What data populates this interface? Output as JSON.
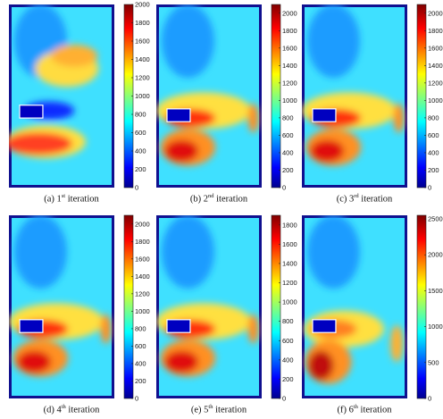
{
  "chart_data": [
    {
      "type": "heatmap",
      "caption": {
        "letter": "(a) 1",
        "sup": "st",
        "rest": " iteration"
      },
      "ylim": [
        0,
        2000
      ],
      "colorbar_ticks": [
        "0",
        "200",
        "400",
        "600",
        "800",
        "1000",
        "1200",
        "1400",
        "1600",
        "1800",
        "2000"
      ],
      "grid": false
    },
    {
      "type": "heatmap",
      "caption": {
        "letter": "(b) 2",
        "sup": "nd",
        "rest": " iteration"
      },
      "ylim": [
        0,
        2100
      ],
      "colorbar_ticks": [
        "0",
        "200",
        "400",
        "600",
        "800",
        "1000",
        "1200",
        "1400",
        "1600",
        "1800",
        "2000"
      ],
      "grid": false
    },
    {
      "type": "heatmap",
      "caption": {
        "letter": "(c) 3",
        "sup": "rd",
        "rest": " iteration"
      },
      "ylim": [
        0,
        2100
      ],
      "colorbar_ticks": [
        "0",
        "200",
        "400",
        "600",
        "800",
        "1000",
        "1200",
        "1400",
        "1600",
        "1800",
        "2000"
      ],
      "grid": false
    },
    {
      "type": "heatmap",
      "caption": {
        "letter": "(d) 4",
        "sup": "th",
        "rest": " iteration"
      },
      "ylim": [
        0,
        2100
      ],
      "colorbar_ticks": [
        "0",
        "200",
        "400",
        "600",
        "800",
        "1000",
        "1200",
        "1400",
        "1600",
        "1800",
        "2000"
      ],
      "grid": false
    },
    {
      "type": "heatmap",
      "caption": {
        "letter": "(e) 5",
        "sup": "th",
        "rest": " iteration"
      },
      "ylim": [
        0,
        1900
      ],
      "colorbar_ticks": [
        "0",
        "200",
        "400",
        "600",
        "800",
        "1000",
        "1200",
        "1400",
        "1600",
        "1800"
      ],
      "grid": false
    },
    {
      "type": "heatmap",
      "caption": {
        "letter": "(f) 6",
        "sup": "th",
        "rest": " iteration"
      },
      "ylim": [
        0,
        2550
      ],
      "colorbar_ticks": [
        "0",
        "500",
        "1000",
        "1500",
        "2000",
        "2500"
      ],
      "grid": false
    }
  ]
}
